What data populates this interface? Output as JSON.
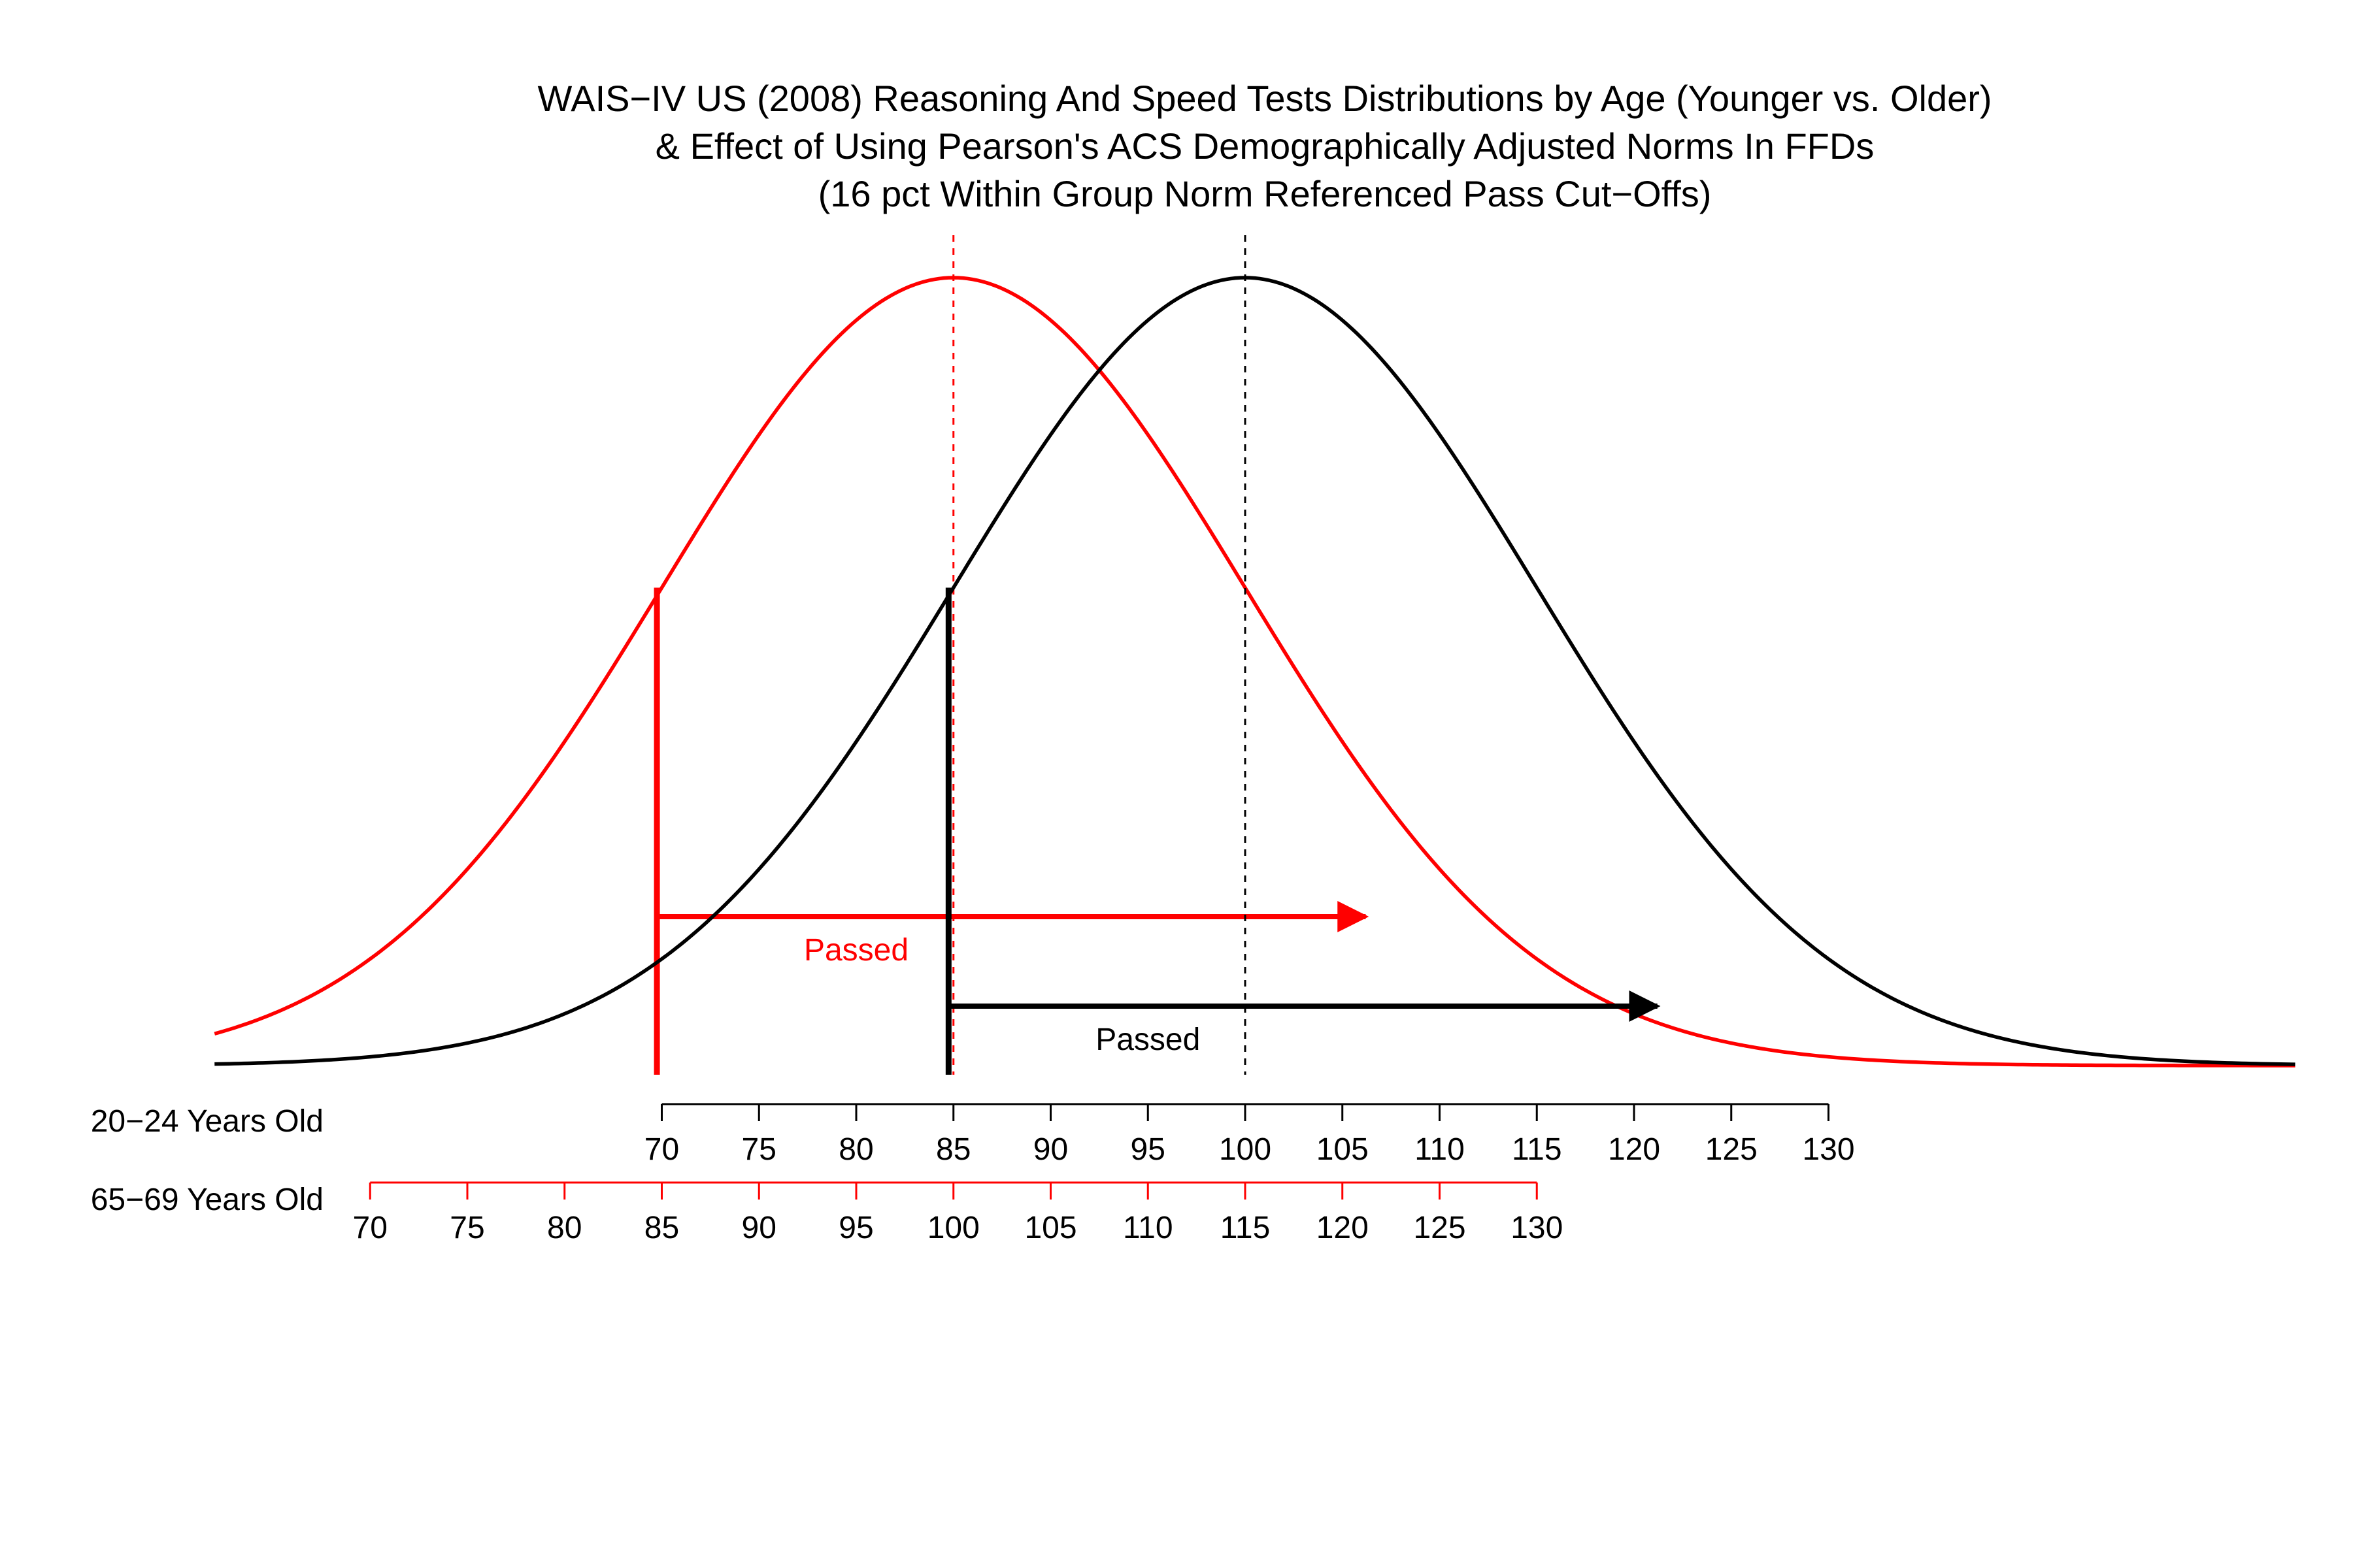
{
  "chart_data": {
    "type": "line",
    "title": [
      "WAIS−IV US (2008) Reasoning And Speed Tests Distributions by Age (Younger vs. Older)",
      "& Effect of Using Pearson's ACS Demographically Adjusted Norms In FFDs",
      "(16 pct Within Group Norm Referenced Pass Cut−Offs)"
    ],
    "xlabel": "",
    "ylabel": "",
    "grid": false,
    "xlim": [
      47,
      154
    ],
    "series": [
      {
        "label": "65−69 Years Old",
        "color": "#ff0000",
        "mean": 85,
        "sd": 15,
        "cutoff": 70,
        "annotation": "Passed",
        "arrow_to": 106.2
      },
      {
        "label": "20−24 Years Old",
        "color": "#000000",
        "mean": 100,
        "sd": 15,
        "cutoff": 85,
        "annotation": "Passed",
        "arrow_to": 121.2
      }
    ],
    "axes": [
      {
        "label": "20−24 Years Old",
        "color": "#000000",
        "ticks": [
          "70",
          "75",
          "80",
          "85",
          "90",
          "95",
          "100",
          "105",
          "110",
          "115",
          "120",
          "125",
          "130"
        ],
        "tick_positions": [
          70,
          75,
          80,
          85,
          90,
          95,
          100,
          105,
          110,
          115,
          120,
          125,
          130
        ]
      },
      {
        "label": "65−69 Years Old",
        "color": "#ff0000",
        "ticks": [
          "70",
          "75",
          "80",
          "85",
          "90",
          "95",
          "100",
          "105",
          "110",
          "115",
          "120",
          "125",
          "130"
        ],
        "tick_positions": [
          55,
          60,
          65,
          70,
          75,
          80,
          85,
          90,
          95,
          100,
          105,
          110,
          115
        ]
      }
    ]
  }
}
